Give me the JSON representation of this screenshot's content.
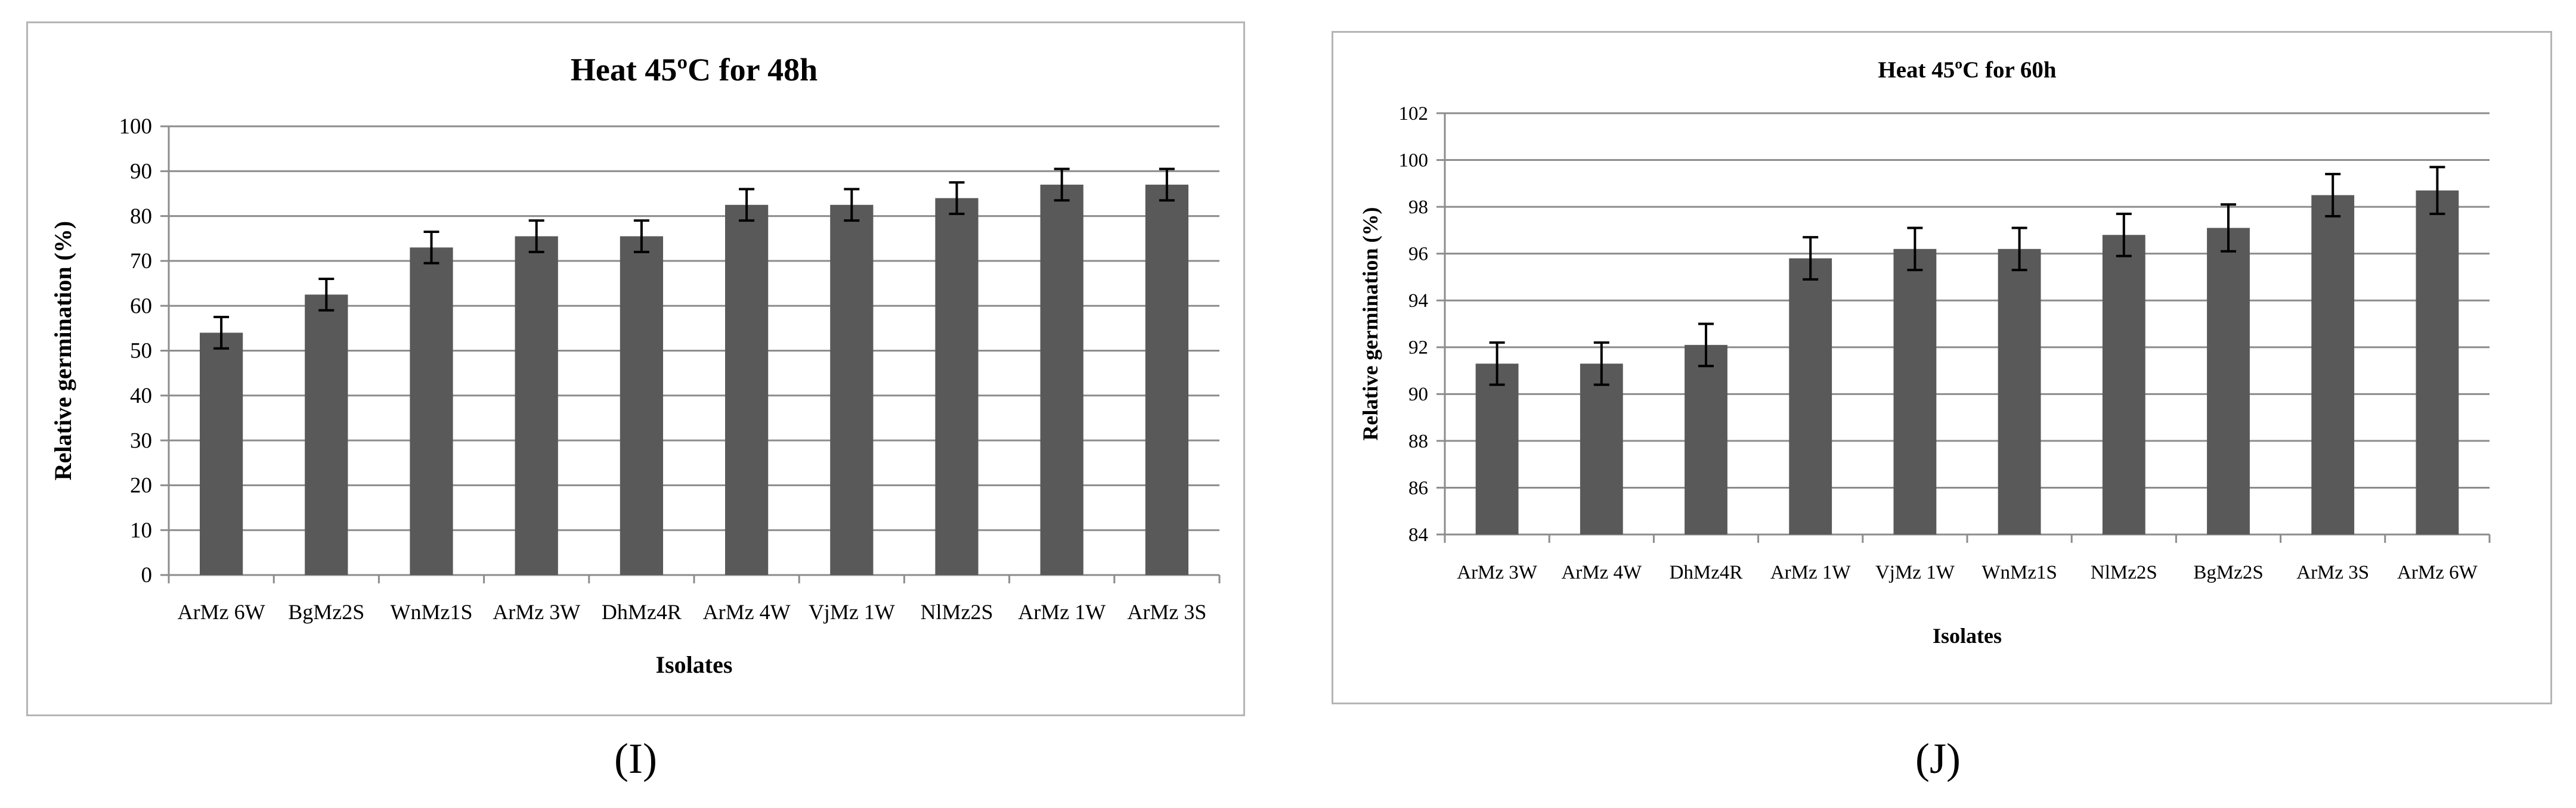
{
  "figure": {
    "caption_i": "(I)",
    "caption_j": "(J)"
  },
  "chart_data": [
    {
      "type": "bar",
      "title": "Heat 45ºC for 48h",
      "xlabel": "Isolates",
      "ylabel": "Relative germination (%)",
      "categories": [
        "ArMz 6W",
        "BgMz2S",
        "WnMz1S",
        "ArMz 3W",
        "DhMz4R",
        "ArMz 4W",
        "VjMz 1W",
        "NlMz2S",
        "ArMz 1W",
        "ArMz 3S"
      ],
      "values": [
        54,
        62.5,
        73,
        75.5,
        75.5,
        82.5,
        82.5,
        84,
        87,
        87
      ],
      "errors": [
        3.5,
        3.5,
        3.5,
        3.5,
        3.5,
        3.5,
        3.5,
        3.5,
        3.5,
        3.5
      ],
      "ylim": [
        0,
        100
      ],
      "yticks": [
        0,
        10,
        20,
        30,
        40,
        50,
        60,
        70,
        80,
        90,
        100
      ],
      "grid": true,
      "bar_color": "#595959"
    },
    {
      "type": "bar",
      "title": "Heat 45ºC for 60h",
      "xlabel": "Isolates",
      "ylabel": "Relative germination (%)",
      "categories": [
        "ArMz 3W",
        "ArMz 4W",
        "DhMz4R",
        "ArMz 1W",
        "VjMz 1W",
        "WnMz1S",
        "NlMz2S",
        "BgMz2S",
        "ArMz 3S",
        "ArMz 6W"
      ],
      "values": [
        91.3,
        91.3,
        92.1,
        95.8,
        96.2,
        96.2,
        96.8,
        97.1,
        98.5,
        98.7
      ],
      "errors": [
        0.9,
        0.9,
        0.9,
        0.9,
        0.9,
        0.9,
        0.9,
        1.0,
        0.9,
        1.0
      ],
      "ylim": [
        84,
        102
      ],
      "yticks": [
        84,
        86,
        88,
        90,
        92,
        94,
        96,
        98,
        100,
        102
      ],
      "grid": true,
      "bar_color": "#595959"
    }
  ]
}
